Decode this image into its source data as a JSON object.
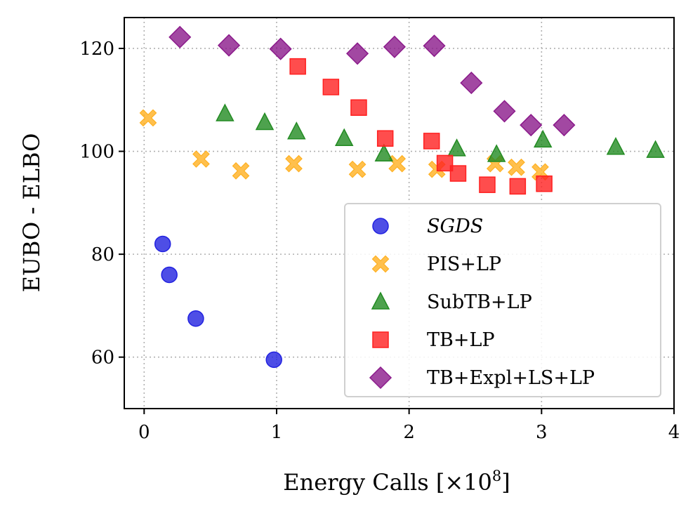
{
  "chart_data": {
    "type": "scatter",
    "title": "",
    "xlabel": "Energy Calls [×10",
    "xlabel_exponent": "8",
    "xlabel_suffix": "]",
    "ylabel": "EUBO - ELBO",
    "xlim": [
      -0.15,
      4.0
    ],
    "ylim": [
      50,
      126
    ],
    "xticks": [
      0,
      1,
      2,
      3,
      4
    ],
    "yticks": [
      60,
      80,
      100,
      120
    ],
    "xtick_labels": [
      "0",
      "1",
      "2",
      "3",
      "4"
    ],
    "ytick_labels": [
      "60",
      "80",
      "100",
      "120"
    ],
    "grid": true,
    "legend_position": "lower-right",
    "series": [
      {
        "name": "SGDS",
        "italic": true,
        "marker": "circle",
        "color": "#2222e0",
        "points": [
          [
            0.14,
            82.0
          ],
          [
            0.19,
            76.0
          ],
          [
            0.39,
            67.5
          ],
          [
            0.98,
            59.5
          ]
        ]
      },
      {
        "name": "PIS+LP",
        "marker": "x",
        "color": "#ffb020",
        "points": [
          [
            0.03,
            106.5
          ],
          [
            0.43,
            98.5
          ],
          [
            0.73,
            96.2
          ],
          [
            1.13,
            97.6
          ],
          [
            1.61,
            96.5
          ],
          [
            1.91,
            97.6
          ],
          [
            2.21,
            96.5
          ],
          [
            2.65,
            97.6
          ],
          [
            2.81,
            96.9
          ],
          [
            2.99,
            96.0
          ]
        ]
      },
      {
        "name": "SubTB+LP",
        "marker": "triangle",
        "color": "#228b22",
        "points": [
          [
            0.61,
            107.3
          ],
          [
            0.91,
            105.6
          ],
          [
            1.15,
            103.8
          ],
          [
            1.51,
            102.5
          ],
          [
            1.81,
            99.5
          ],
          [
            2.36,
            100.5
          ],
          [
            2.66,
            99.4
          ],
          [
            3.01,
            102.2
          ],
          [
            3.56,
            100.8
          ],
          [
            3.86,
            100.2
          ]
        ]
      },
      {
        "name": "TB+LP",
        "marker": "square",
        "color": "#ff2020",
        "points": [
          [
            1.16,
            116.5
          ],
          [
            1.41,
            112.5
          ],
          [
            1.62,
            108.5
          ],
          [
            1.82,
            102.5
          ],
          [
            2.17,
            102.0
          ],
          [
            2.27,
            97.7
          ],
          [
            2.37,
            95.7
          ],
          [
            2.59,
            93.5
          ],
          [
            2.82,
            93.2
          ],
          [
            3.02,
            93.7
          ]
        ]
      },
      {
        "name": "TB+Expl+LS+LP",
        "marker": "diamond",
        "color": "#8b1a8b",
        "points": [
          [
            0.27,
            122.2
          ],
          [
            0.64,
            120.6
          ],
          [
            1.03,
            119.9
          ],
          [
            1.61,
            119.0
          ],
          [
            1.89,
            120.3
          ],
          [
            2.19,
            120.5
          ],
          [
            2.47,
            113.3
          ],
          [
            2.72,
            107.8
          ],
          [
            2.92,
            105.1
          ],
          [
            3.17,
            105.1
          ]
        ]
      }
    ]
  }
}
